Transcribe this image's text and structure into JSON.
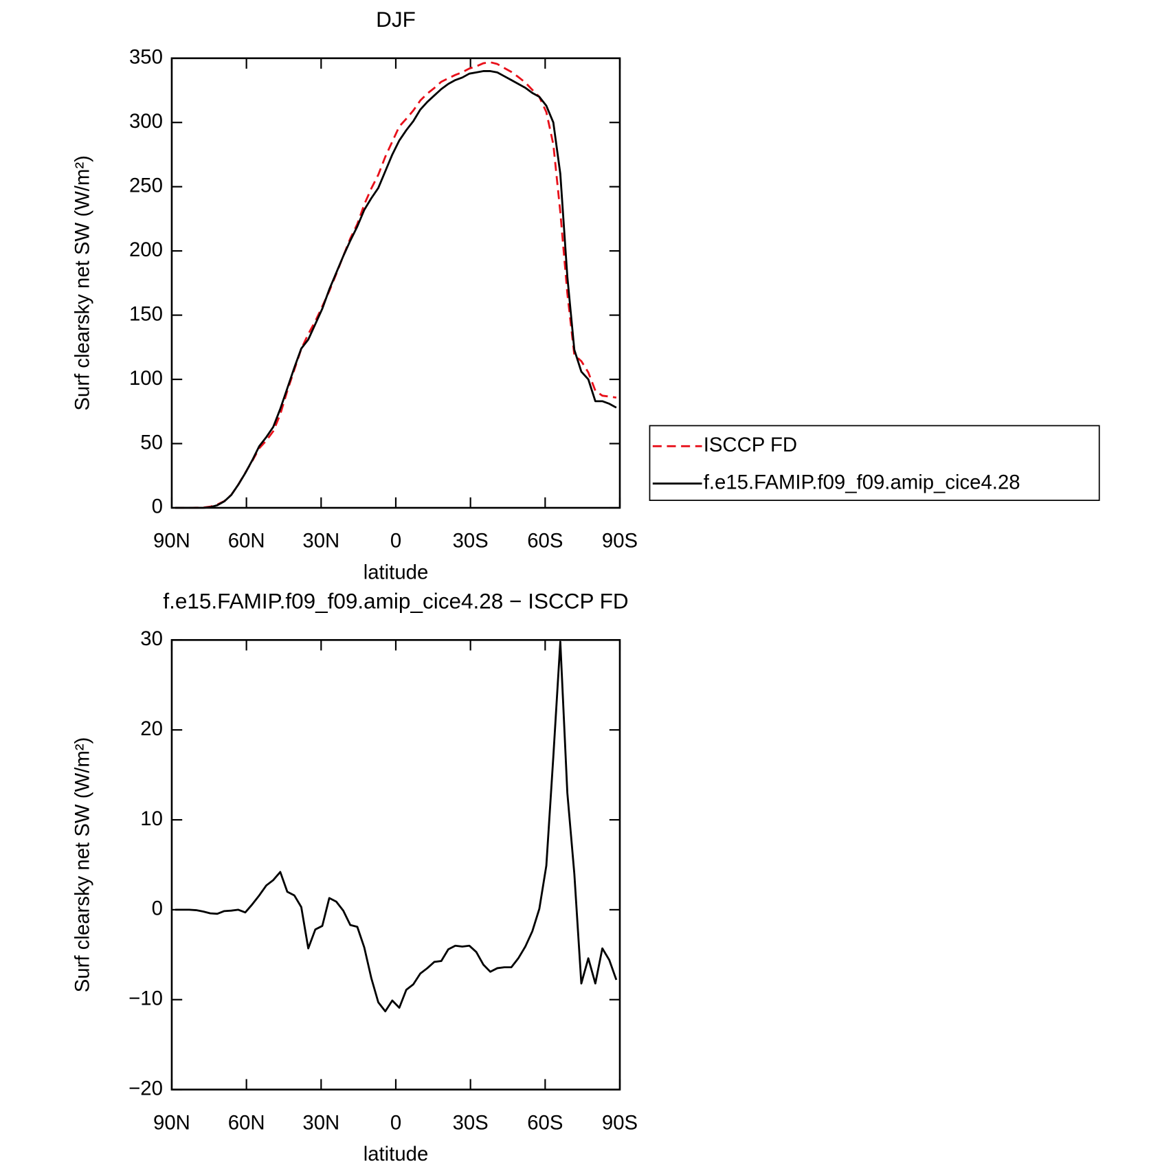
{
  "chart_data": [
    {
      "type": "line",
      "title": "DJF",
      "xlabel": "latitude",
      "ylabel": "Surf clearsky net SW (W/m²)",
      "x": [
        88.59,
        85.78,
        82.97,
        80.16,
        77.34,
        74.53,
        71.72,
        68.91,
        66.09,
        63.28,
        60.47,
        57.66,
        54.84,
        52.03,
        49.22,
        46.41,
        43.59,
        40.78,
        37.97,
        35.16,
        32.34,
        29.53,
        26.72,
        23.91,
        21.09,
        18.28,
        15.47,
        12.66,
        9.84,
        7.03,
        4.22,
        1.41,
        -1.41,
        -4.22,
        -7.03,
        -9.84,
        -12.66,
        -15.47,
        -18.28,
        -21.09,
        -23.91,
        -26.72,
        -29.53,
        -32.34,
        -35.16,
        -37.97,
        -40.78,
        -43.59,
        -46.41,
        -49.22,
        -52.03,
        -54.84,
        -57.66,
        -60.47,
        -63.28,
        -66.09,
        -68.91,
        -71.72,
        -74.53,
        -77.34,
        -80.16,
        -82.97,
        -85.78,
        -88.59
      ],
      "series": [
        {
          "name": "ISCCP FD",
          "color": "#e8101a",
          "line_style": "dashed",
          "values": [
            0,
            0,
            0,
            0.1,
            0.2,
            0.9,
            2.5,
            5.2,
            10.1,
            18,
            27.3,
            36.4,
            46.4,
            52.3,
            59.7,
            72.8,
            91,
            107.4,
            123.7,
            135.3,
            145.2,
            156.8,
            168.7,
            182.1,
            196.1,
            209.7,
            220.9,
            236.2,
            248.6,
            259.3,
            273.3,
            285.1,
            296.9,
            302.9,
            309.3,
            317.1,
            322.5,
            326.8,
            331.7,
            334.4,
            337,
            339.1,
            342,
            343.7,
            346.1,
            346.9,
            345.5,
            342.4,
            339.4,
            335.4,
            331.1,
            325.4,
            319.9,
            308.1,
            283,
            230.2,
            167,
            119,
            114.2,
            105.4,
            91.2,
            87.3,
            86.6,
            85.8
          ]
        },
        {
          "name": "f.e15.FAMIP.f09_f09.amip_cice4.28",
          "color": "#000000",
          "line_style": "solid",
          "values": [
            0,
            0,
            0,
            0,
            0,
            0.5,
            2,
            5,
            10,
            18,
            27,
            37,
            48,
            55,
            63,
            77,
            93,
            109,
            124,
            131,
            143,
            155,
            170,
            183,
            196,
            208,
            219,
            232,
            241,
            249,
            262,
            275,
            286,
            294,
            301,
            310,
            316,
            321,
            326,
            330,
            333,
            335,
            338,
            339,
            340,
            340,
            339,
            336,
            333,
            330,
            327,
            323,
            320,
            313,
            300,
            260,
            180,
            123,
            106,
            100,
            83,
            83,
            81,
            78
          ]
        }
      ],
      "xlim": [
        90,
        -90
      ],
      "xticks": [
        {
          "value": 90,
          "label": "90N"
        },
        {
          "value": 60,
          "label": "60N"
        },
        {
          "value": 30,
          "label": "30N"
        },
        0,
        {
          "value": -30,
          "label": "30S"
        },
        {
          "value": -60,
          "label": "60S"
        },
        {
          "value": -90,
          "label": "90S"
        }
      ],
      "ylim": [
        0,
        350
      ],
      "yticks": [
        0,
        50,
        100,
        150,
        200,
        250,
        300,
        350
      ]
    },
    {
      "type": "line",
      "title": "f.e15.FAMIP.f09_f09.amip_cice4.28 − ISCCP FD",
      "xlabel": "latitude",
      "ylabel": "Surf clearsky net SW (W/m²)",
      "x": [
        88.59,
        85.78,
        82.97,
        80.16,
        77.34,
        74.53,
        71.72,
        68.91,
        66.09,
        63.28,
        60.47,
        57.66,
        54.84,
        52.03,
        49.22,
        46.41,
        43.59,
        40.78,
        37.97,
        35.16,
        32.34,
        29.53,
        26.72,
        23.91,
        21.09,
        18.28,
        15.47,
        12.66,
        9.84,
        7.03,
        4.22,
        1.41,
        -1.41,
        -4.22,
        -7.03,
        -9.84,
        -12.66,
        -15.47,
        -18.28,
        -21.09,
        -23.91,
        -26.72,
        -29.53,
        -32.34,
        -35.16,
        -37.97,
        -40.78,
        -43.59,
        -46.41,
        -49.22,
        -52.03,
        -54.84,
        -57.66,
        -60.47,
        -63.28,
        -66.09,
        -68.91,
        -71.72,
        -74.53,
        -77.34,
        -80.16,
        -82.97,
        -85.78,
        -88.59
      ],
      "series": [
        {
          "color": "#000000",
          "line_style": "solid",
          "values": [
            0,
            0,
            0,
            -0.05,
            -0.2,
            -0.4,
            -0.45,
            -0.15,
            -0.1,
            0,
            -0.3,
            0.6,
            1.6,
            2.7,
            3.3,
            4.2,
            2,
            1.6,
            0.3,
            -4.3,
            -2.2,
            -1.8,
            1.3,
            0.9,
            -0.1,
            -1.7,
            -1.9,
            -4.2,
            -7.6,
            -10.3,
            -11.3,
            -10.1,
            -10.9,
            -8.9,
            -8.3,
            -7.1,
            -6.5,
            -5.8,
            -5.7,
            -4.4,
            -4,
            -4.1,
            -4,
            -4.7,
            -6.1,
            -6.9,
            -6.5,
            -6.4,
            -6.4,
            -5.4,
            -4.1,
            -2.4,
            0.1,
            4.9,
            17,
            29.8,
            13,
            4,
            -8.2,
            -5.4,
            -8.2,
            -4.3,
            -5.6,
            -7.8
          ]
        }
      ],
      "xlim": [
        90,
        -90
      ],
      "xticks": [
        {
          "value": 90,
          "label": "90N"
        },
        {
          "value": 60,
          "label": "60N"
        },
        {
          "value": 30,
          "label": "30N"
        },
        0,
        {
          "value": -30,
          "label": "30S"
        },
        {
          "value": -60,
          "label": "60S"
        },
        {
          "value": -90,
          "label": "90S"
        }
      ],
      "ylim": [
        -20,
        30
      ],
      "yticks": [
        {
          "value": -20,
          "label": "−20"
        },
        {
          "value": -10,
          "label": "−10"
        },
        0,
        10,
        20,
        30
      ]
    }
  ]
}
